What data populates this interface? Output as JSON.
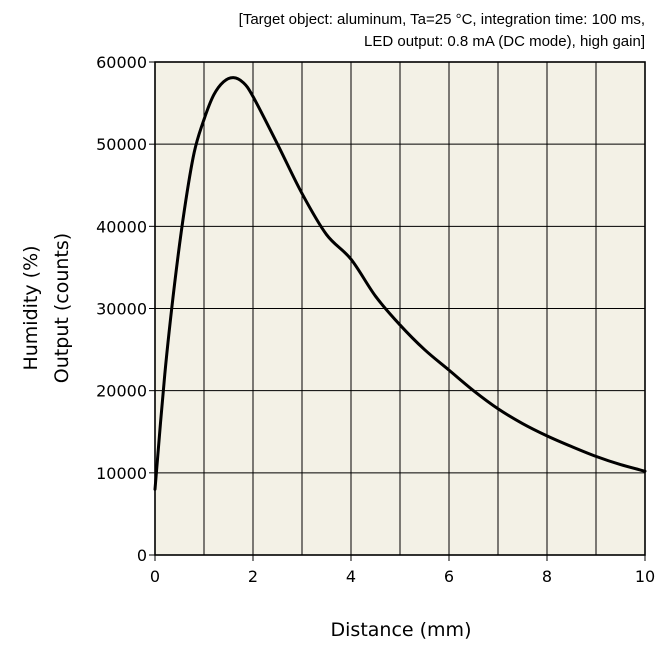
{
  "chart_data": {
    "type": "line",
    "annotation_lines": [
      "[Target object: aluminum, Ta=25 °C, integration time: 100 ms,",
      "LED output: 0.8 mA (DC mode), high gain]"
    ],
    "xlabel": "Distance (mm)",
    "ylabel_lines": [
      "Humidity (%)",
      "Output (counts)"
    ],
    "xlim": [
      0,
      10
    ],
    "ylim": [
      0,
      60000
    ],
    "xticks": [
      0,
      2,
      4,
      6,
      8,
      10
    ],
    "yticks": [
      0,
      10000,
      20000,
      30000,
      40000,
      50000,
      60000
    ],
    "grid": true,
    "background_color": "#f3f1e6",
    "line_color": "#000000",
    "series": [
      {
        "x": [
          0,
          0.2,
          0.4,
          0.6,
          0.8,
          1.0,
          1.2,
          1.4,
          1.6,
          1.8,
          2.0,
          2.5,
          3.0,
          3.5,
          4.0,
          4.5,
          5.0,
          5.5,
          6.0,
          6.5,
          7.0,
          7.5,
          8.0,
          8.5,
          9.0,
          9.5,
          10.0
        ],
        "y": [
          8000,
          22000,
          33000,
          42000,
          49000,
          53000,
          56000,
          57600,
          58100,
          57500,
          55800,
          50000,
          44000,
          39000,
          36000,
          31500,
          28000,
          25000,
          22500,
          20000,
          17800,
          16000,
          14500,
          13200,
          12000,
          11000,
          10200
        ]
      }
    ]
  }
}
